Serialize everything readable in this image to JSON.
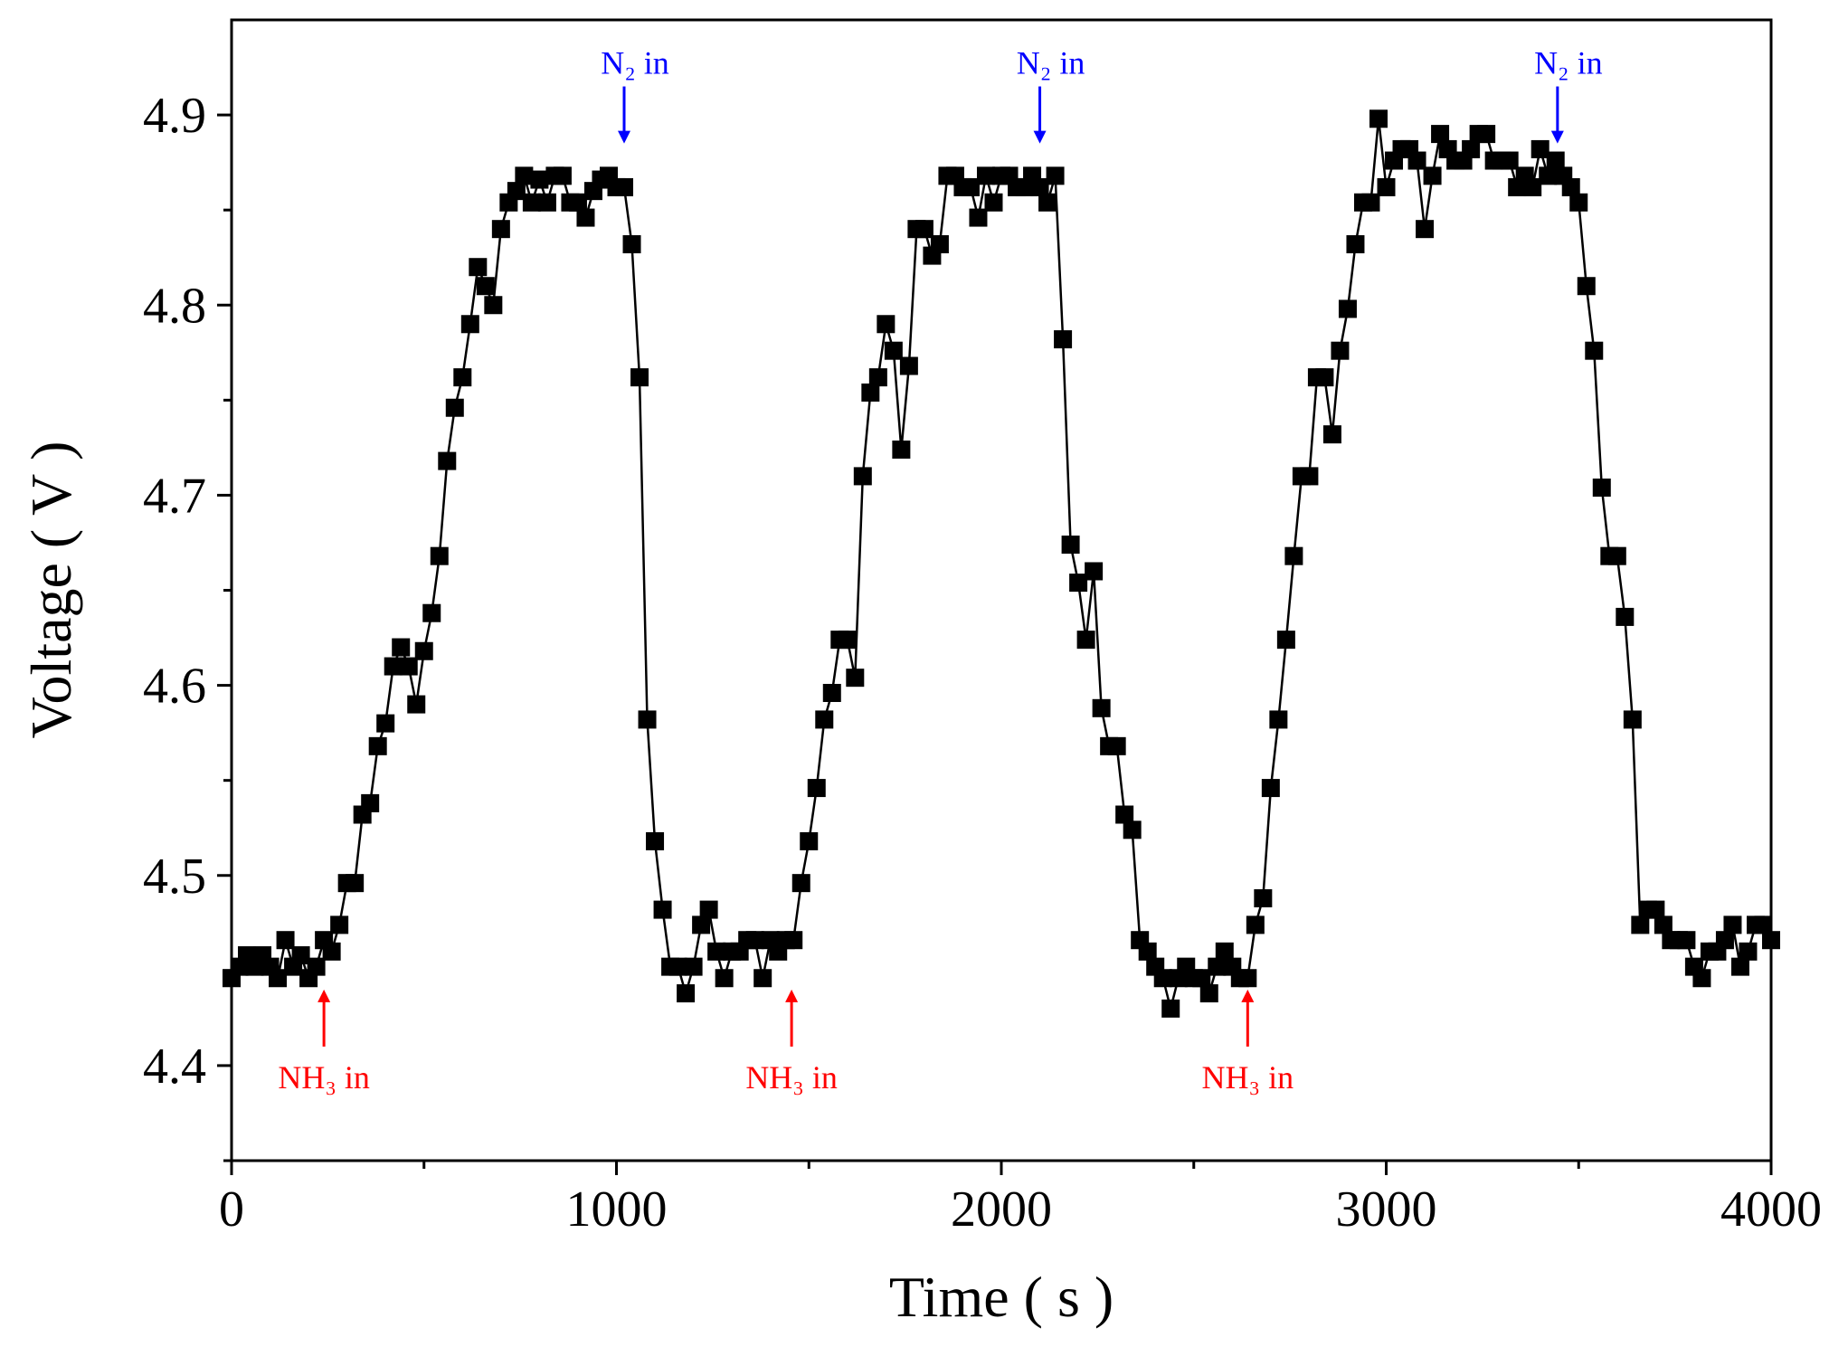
{
  "chart_data": {
    "type": "scatter",
    "title": "",
    "xlabel": "Time ( s )",
    "ylabel": "Voltage ( V )",
    "xlim": [
      0,
      4000
    ],
    "ylim": [
      4.35,
      4.95
    ],
    "xticks": [
      0,
      1000,
      2000,
      3000,
      4000
    ],
    "xtick_labels": [
      "0",
      "1000",
      "2000",
      "3000",
      "4000"
    ],
    "yticks": [
      4.4,
      4.5,
      4.6,
      4.7,
      4.8,
      4.9
    ],
    "ytick_labels": [
      "4.4",
      "4.5",
      "4.6",
      "4.7",
      "4.8",
      "4.9"
    ],
    "grid": false,
    "marker": "square",
    "connect_points": true,
    "color": "#000000",
    "series": [
      {
        "name": "Voltage",
        "x": [
          0,
          20,
          40,
          60,
          80,
          100,
          120,
          140,
          160,
          180,
          200,
          220,
          240,
          260,
          280,
          300,
          320,
          340,
          360,
          380,
          400,
          420,
          440,
          460,
          480,
          500,
          520,
          540,
          560,
          580,
          600,
          620,
          640,
          660,
          680,
          700,
          720,
          740,
          760,
          780,
          800,
          820,
          840,
          860,
          880,
          900,
          920,
          940,
          960,
          980,
          1000,
          1020,
          1040,
          1060,
          1080,
          1100,
          1120,
          1140,
          1160,
          1180,
          1200,
          1220,
          1240,
          1260,
          1280,
          1300,
          1320,
          1340,
          1360,
          1380,
          1400,
          1420,
          1440,
          1460,
          1480,
          1500,
          1520,
          1540,
          1560,
          1580,
          1600,
          1620,
          1640,
          1660,
          1680,
          1700,
          1720,
          1740,
          1760,
          1780,
          1800,
          1820,
          1840,
          1860,
          1880,
          1900,
          1920,
          1940,
          1960,
          1980,
          2000,
          2020,
          2040,
          2060,
          2080,
          2100,
          2120,
          2140,
          2160,
          2180,
          2200,
          2220,
          2240,
          2260,
          2280,
          2300,
          2320,
          2340,
          2360,
          2380,
          2400,
          2420,
          2440,
          2460,
          2480,
          2500,
          2520,
          2540,
          2560,
          2580,
          2600,
          2620,
          2640,
          2660,
          2680,
          2700,
          2720,
          2740,
          2760,
          2780,
          2800,
          2820,
          2840,
          2860,
          2880,
          2900,
          2920,
          2940,
          2960,
          2980,
          3000,
          3020,
          3040,
          3060,
          3080,
          3100,
          3120,
          3140,
          3160,
          3180,
          3200,
          3220,
          3240,
          3260,
          3280,
          3300,
          3320,
          3340,
          3360,
          3380,
          3400,
          3420,
          3440,
          3460,
          3480,
          3500,
          3520,
          3540,
          3560,
          3580,
          3600,
          3620,
          3640,
          3660,
          3680,
          3700,
          3720,
          3740,
          3760,
          3780,
          3800,
          3820,
          3840,
          3860,
          3880,
          3900,
          3920,
          3940,
          3960,
          3980,
          4000
        ],
        "y": [
          4.446,
          4.452,
          4.458,
          4.452,
          4.458,
          4.452,
          4.446,
          4.466,
          4.452,
          4.458,
          4.446,
          4.452,
          4.466,
          4.46,
          4.474,
          4.496,
          4.496,
          4.532,
          4.538,
          4.568,
          4.58,
          4.61,
          4.62,
          4.61,
          4.59,
          4.618,
          4.638,
          4.668,
          4.718,
          4.746,
          4.762,
          4.79,
          4.82,
          4.81,
          4.8,
          4.84,
          4.854,
          4.86,
          4.868,
          4.854,
          4.866,
          4.854,
          4.868,
          4.868,
          4.854,
          4.854,
          4.846,
          4.86,
          4.866,
          4.868,
          4.862,
          4.862,
          4.832,
          4.762,
          4.582,
          4.518,
          4.482,
          4.452,
          4.452,
          4.438,
          4.452,
          4.474,
          4.482,
          4.46,
          4.446,
          4.46,
          4.46,
          4.466,
          4.466,
          4.446,
          4.466,
          4.46,
          4.466,
          4.466,
          4.496,
          4.518,
          4.546,
          4.582,
          4.596,
          4.624,
          4.624,
          4.604,
          4.71,
          4.754,
          4.762,
          4.79,
          4.776,
          4.724,
          4.768,
          4.84,
          4.84,
          4.826,
          4.832,
          4.868,
          4.868,
          4.862,
          4.862,
          4.846,
          4.868,
          4.854,
          4.868,
          4.868,
          4.862,
          4.862,
          4.868,
          4.862,
          4.854,
          4.868,
          4.782,
          4.674,
          4.654,
          4.624,
          4.66,
          4.588,
          4.568,
          4.568,
          4.532,
          4.524,
          4.466,
          4.46,
          4.452,
          4.446,
          4.43,
          4.446,
          4.452,
          4.446,
          4.446,
          4.438,
          4.452,
          4.46,
          4.452,
          4.446,
          4.446,
          4.474,
          4.488,
          4.546,
          4.582,
          4.624,
          4.668,
          4.71,
          4.71,
          4.762,
          4.762,
          4.732,
          4.776,
          4.798,
          4.832,
          4.854,
          4.854,
          4.898,
          4.862,
          4.876,
          4.882,
          4.882,
          4.876,
          4.84,
          4.868,
          4.89,
          4.882,
          4.876,
          4.876,
          4.882,
          4.89,
          4.89,
          4.876,
          4.876,
          4.876,
          4.862,
          4.868,
          4.862,
          4.882,
          4.868,
          4.876,
          4.868,
          4.862,
          4.854,
          4.81,
          4.776,
          4.704,
          4.668,
          4.668,
          4.636,
          4.582,
          4.474,
          4.482,
          4.482,
          4.474,
          4.466,
          4.466,
          4.466,
          4.452,
          4.446,
          4.46,
          4.46,
          4.466,
          4.474,
          4.452,
          4.46,
          4.474,
          4.474,
          4.466
        ]
      }
    ],
    "annotations": [
      {
        "text": "NH₃ in",
        "x": 240,
        "color": "#ff0000",
        "direction": "up"
      },
      {
        "text": "NH₃ in",
        "x": 1455,
        "color": "#ff0000",
        "direction": "up"
      },
      {
        "text": "NH₃ in",
        "x": 2640,
        "color": "#ff0000",
        "direction": "up"
      },
      {
        "text": "N₂ in",
        "x": 1020,
        "color": "#0000ff",
        "direction": "down"
      },
      {
        "text": "N₂ in",
        "x": 2100,
        "color": "#0000ff",
        "direction": "down"
      },
      {
        "text": "N₂ in",
        "x": 3445,
        "color": "#0000ff",
        "direction": "down"
      }
    ]
  }
}
